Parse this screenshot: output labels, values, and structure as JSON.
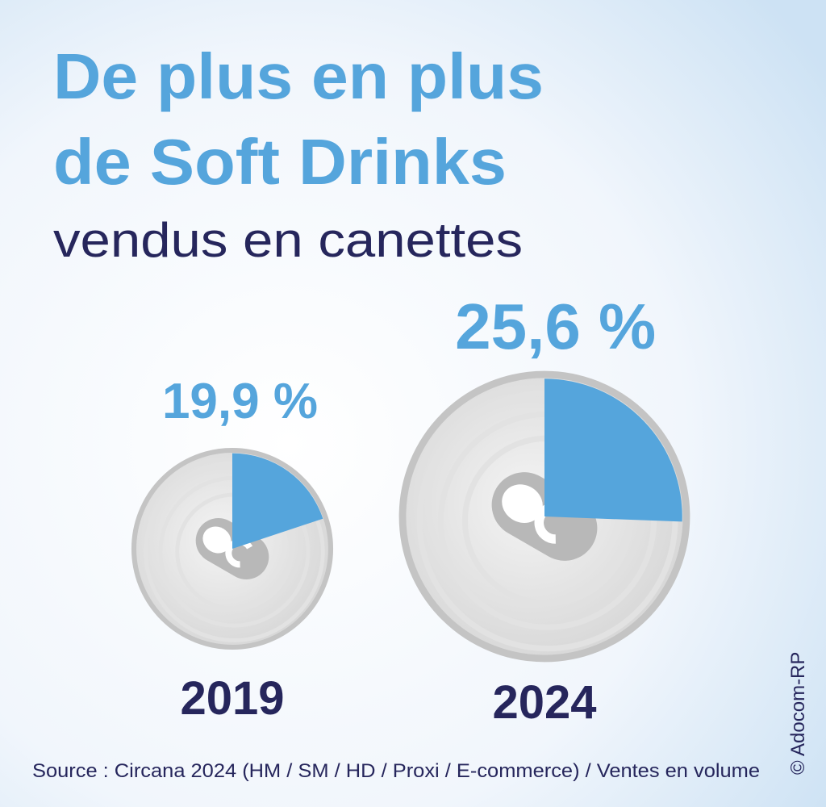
{
  "headline": [
    "De plus en plus",
    "de Soft Drinks"
  ],
  "subtitle": "vendus en canettes",
  "chart_data": [
    {
      "type": "pie",
      "title": "2019",
      "values": [
        19.9
      ],
      "value_labels": [
        "19,9 %"
      ],
      "color": "#55a5dc"
    },
    {
      "type": "pie",
      "title": "2024",
      "values": [
        25.6
      ],
      "value_labels": [
        "25,6 %"
      ],
      "color": "#55a5dc"
    }
  ],
  "source": "Source : Circana 2024 (HM / SM / HD / Proxi / E-commerce) / Ventes en volume",
  "credit": "© Adocom-RP"
}
